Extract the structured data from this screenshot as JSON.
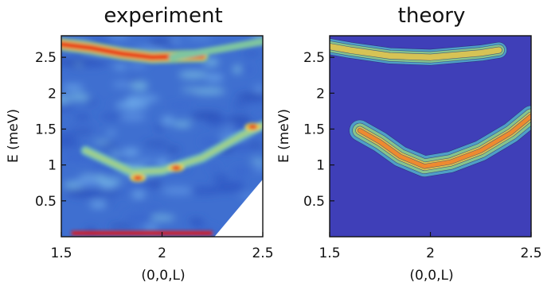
{
  "chart_data": [
    {
      "type": "heatmap",
      "title": "experiment",
      "xlabel": "(0,0,L)",
      "ylabel": "E (meV)",
      "xlim": [
        1.5,
        2.5
      ],
      "ylim": [
        0,
        2.8
      ],
      "xticks": [
        1.5,
        2,
        2.5
      ],
      "yticks": [
        0.5,
        1,
        1.5,
        2,
        2.5
      ],
      "xtick_labels": [
        "1.5",
        "2",
        "2.5"
      ],
      "ytick_labels": [
        "0.5",
        "1",
        "1.5",
        "2",
        "2.5"
      ],
      "colormap": "jet",
      "background_color": "#3f6fd0",
      "masked_region": [
        [
          2.26,
          0
        ],
        [
          2.5,
          0.8
        ],
        [
          2.5,
          0
        ]
      ],
      "features": [
        {
          "kind": "intense_band",
          "points": [
            [
              1.5,
              2.68
            ],
            [
              1.65,
              2.63
            ],
            [
              1.8,
              2.55
            ],
            [
              1.95,
              2.5
            ],
            [
              2.2,
              2.52
            ]
          ],
          "intensity": 1.0
        },
        {
          "kind": "weak_band",
          "points": [
            [
              2.05,
              2.5
            ],
            [
              2.3,
              2.62
            ],
            [
              2.5,
              2.72
            ]
          ],
          "intensity": 0.5
        },
        {
          "kind": "mode",
          "points": [
            [
              1.62,
              1.2
            ],
            [
              1.85,
              0.9
            ],
            [
              2.0,
              0.92
            ],
            [
              2.2,
              1.1
            ],
            [
              2.4,
              1.42
            ],
            [
              2.5,
              1.55
            ]
          ],
          "intensity": 0.55
        },
        {
          "kind": "spot",
          "points": [
            [
              2.45,
              1.53
            ]
          ],
          "intensity": 1.0
        },
        {
          "kind": "spot",
          "points": [
            [
              2.07,
              0.96
            ]
          ],
          "intensity": 0.95
        },
        {
          "kind": "spot",
          "points": [
            [
              1.88,
              0.82
            ]
          ],
          "intensity": 0.8
        },
        {
          "kind": "elastic_line",
          "points": [
            [
              1.55,
              0.05
            ],
            [
              2.25,
              0.05
            ]
          ],
          "intensity": 1.0
        }
      ]
    },
    {
      "type": "heatmap",
      "title": "theory",
      "xlabel": "(0,0,L)",
      "ylabel": "E (meV)",
      "xlim": [
        1.5,
        2.5
      ],
      "ylim": [
        0,
        2.8
      ],
      "xticks": [
        1.5,
        2,
        2.5
      ],
      "yticks": [
        0.5,
        1,
        1.5,
        2,
        2.5
      ],
      "xtick_labels": [
        "1.5",
        "2",
        "2.5"
      ],
      "ytick_labels": [
        "0.5",
        "1",
        "1.5",
        "2",
        "2.5"
      ],
      "colormap": "jet",
      "style": "filled_contour",
      "background_color": "#3f3fb8",
      "contour_levels": [
        {
          "level": 1,
          "color": "#4f9fc7"
        },
        {
          "level": 2,
          "color": "#86c48e"
        },
        {
          "level": 3,
          "color": "#d6c355"
        },
        {
          "level": 4,
          "color": "#ee8a30"
        }
      ],
      "branches": [
        {
          "name_hidden": true,
          "points": [
            [
              1.5,
              2.65
            ],
            [
              1.6,
              2.6
            ],
            [
              1.8,
              2.52
            ],
            [
              2.0,
              2.5
            ],
            [
              2.25,
              2.56
            ],
            [
              2.34,
              2.6
            ]
          ],
          "max_level": 3
        },
        {
          "name_hidden": true,
          "points": [
            [
              1.65,
              1.48
            ],
            [
              1.75,
              1.32
            ],
            [
              1.85,
              1.12
            ],
            [
              1.97,
              0.98
            ],
            [
              2.1,
              1.04
            ],
            [
              2.25,
              1.2
            ],
            [
              2.4,
              1.45
            ],
            [
              2.5,
              1.68
            ]
          ],
          "max_level": 4
        }
      ]
    }
  ]
}
